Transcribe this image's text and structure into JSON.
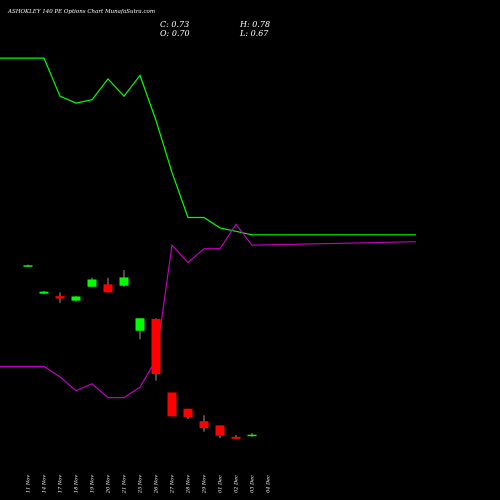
{
  "header": {
    "title": "ASHOKLEY 140 PE Options  Chart MunafaSutra.com",
    "close_label": "C:",
    "close_value": "0.73",
    "high_label": "H:",
    "high_value": "0.78",
    "open_label": "O:",
    "open_value": "0.70",
    "low_label": "L:",
    "low_value": "0.67"
  },
  "chart_data": {
    "type": "candlestick",
    "title": "ASHOKLEY 140 PE Options  Chart MunafaSutra.com",
    "categories": [
      "11 Nov",
      "14 Nov",
      "17 Nov",
      "18 Nov",
      "19 Nov",
      "20 Nov",
      "21 Nov",
      "25 Nov",
      "26 Nov",
      "27 Nov",
      "28 Nov",
      "29 Nov",
      "01 Dec",
      "02 Dec",
      "03 Dec",
      "04 Dec"
    ],
    "candles": [
      {
        "date": "11 Nov",
        "open": 5.62,
        "high": 5.64,
        "low": 5.6,
        "close": 5.6,
        "color": "#00ff00"
      },
      {
        "date": "14 Nov",
        "open": 4.8,
        "high": 4.88,
        "low": 4.78,
        "close": 4.86,
        "color": "#00ff00"
      },
      {
        "date": "17 Nov",
        "open": 4.73,
        "high": 4.84,
        "low": 4.53,
        "close": 4.66,
        "color": "#ff0000"
      },
      {
        "date": "18 Nov",
        "open": 4.6,
        "high": 4.74,
        "low": 4.58,
        "close": 4.72,
        "color": "#00ff00"
      },
      {
        "date": "19 Nov",
        "open": 5.0,
        "high": 5.26,
        "low": 5.0,
        "close": 5.21,
        "color": "#00ff00"
      },
      {
        "date": "20 Nov",
        "open": 5.07,
        "high": 5.26,
        "low": 4.83,
        "close": 4.84,
        "color": "#ff0000"
      },
      {
        "date": "21 Nov",
        "open": 5.03,
        "high": 5.48,
        "low": 5.0,
        "close": 5.27,
        "color": "#00ff00"
      },
      {
        "date": "25 Nov",
        "open": 3.73,
        "high": 4.09,
        "low": 3.48,
        "close": 4.09,
        "color": "#00ff00"
      },
      {
        "date": "26 Nov",
        "open": 4.07,
        "high": 4.09,
        "low": 2.29,
        "close": 2.48,
        "color": "#ff0000"
      },
      {
        "date": "27 Nov",
        "open": 1.95,
        "high": 1.95,
        "low": 1.26,
        "close": 1.26,
        "color": "#ff0000"
      },
      {
        "date": "28 Nov",
        "open": 1.48,
        "high": 1.48,
        "low": 1.18,
        "close": 1.24,
        "color": "#ff0000"
      },
      {
        "date": "29 Nov",
        "open": 1.12,
        "high": 1.29,
        "low": 0.82,
        "close": 0.92,
        "color": "#ff0000"
      },
      {
        "date": "01 Dec",
        "open": 1.0,
        "high": 1.0,
        "low": 0.63,
        "close": 0.7,
        "color": "#ff0000"
      },
      {
        "date": "02 Dec",
        "open": 0.67,
        "high": 0.72,
        "low": 0.6,
        "close": 0.61,
        "color": "#ff0000"
      },
      {
        "date": "03 Dec",
        "open": 0.7,
        "high": 0.78,
        "low": 0.67,
        "close": 0.73,
        "color": "#00ff00"
      }
    ],
    "series": [
      {
        "color": "#00ff00",
        "values": [
          11.6,
          11.6,
          10.5,
          10.3,
          10.4,
          11.0,
          10.5,
          11.1,
          9.8,
          8.3,
          7.0,
          7.0,
          6.7,
          6.6,
          6.5,
          6.5
        ]
      },
      {
        "color": "#c000c0",
        "values": [
          2.7,
          2.7,
          2.4,
          2.0,
          2.2,
          1.8,
          1.8,
          2.1,
          2.9,
          6.2,
          5.7,
          6.1,
          6.1,
          6.8,
          6.2,
          6.3
        ]
      }
    ],
    "ylim": [
      0,
      12.7
    ],
    "grid": false,
    "legend": "none"
  }
}
